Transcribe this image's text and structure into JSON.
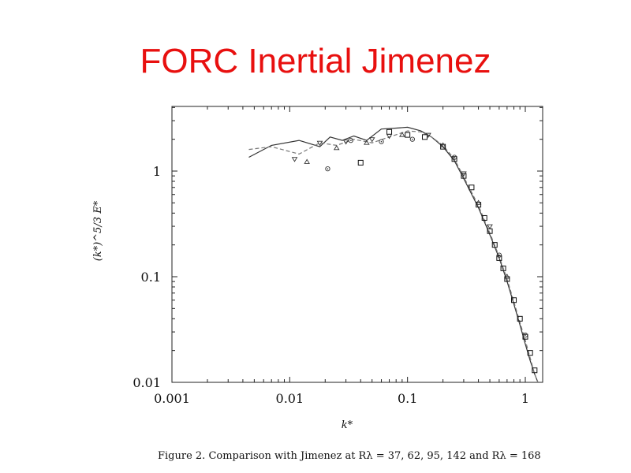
{
  "slide": {
    "title": "FORC Inertial Jimenez"
  },
  "figure": {
    "caption": "Figure 2. Comparison with Jimenez at Rλ = 37, 62, 95, 142 and Rλ = 168"
  },
  "chart_data": {
    "type": "line",
    "xlabel": "k*",
    "ylabel": "(k*)^5/3 E*",
    "xscale": "log",
    "yscale": "log",
    "xlim": [
      0.001,
      1.7
    ],
    "ylim": [
      0.01,
      4
    ],
    "xticks": [
      0.001,
      0.01,
      0.1,
      1
    ],
    "xtick_labels": [
      "0.001",
      "0.01",
      "0.1",
      "1"
    ],
    "yticks": [
      0.01,
      0.1,
      1
    ],
    "ytick_labels": [
      "0.01",
      "0.1",
      "1"
    ],
    "grid": false,
    "series": [
      {
        "style": "solid",
        "color": "#333333",
        "x": [
          0.0045,
          0.007,
          0.012,
          0.018,
          0.022,
          0.028,
          0.035,
          0.045,
          0.06,
          0.08,
          0.1,
          0.13,
          0.16,
          0.2,
          0.25,
          0.3,
          0.4,
          0.5,
          0.6,
          0.7,
          0.8,
          0.9,
          1.0,
          1.1,
          1.2,
          1.28
        ],
        "y": [
          1.35,
          1.75,
          1.95,
          1.7,
          2.1,
          1.95,
          2.15,
          1.95,
          2.5,
          2.55,
          2.6,
          2.4,
          2.1,
          1.7,
          1.25,
          0.85,
          0.45,
          0.25,
          0.15,
          0.09,
          0.055,
          0.035,
          0.023,
          0.016,
          0.012,
          0.01
        ]
      },
      {
        "style": "dashed",
        "color": "#777777",
        "x": [
          0.0045,
          0.007,
          0.012,
          0.018,
          0.025,
          0.035,
          0.05,
          0.07,
          0.1,
          0.13,
          0.16,
          0.2,
          0.25,
          0.3,
          0.4,
          0.5,
          0.6,
          0.7,
          0.8,
          0.9,
          1.0,
          1.1,
          1.2,
          1.28
        ],
        "y": [
          1.6,
          1.7,
          1.45,
          1.85,
          1.75,
          2.0,
          1.85,
          2.1,
          2.4,
          2.35,
          2.1,
          1.75,
          1.3,
          0.88,
          0.47,
          0.26,
          0.155,
          0.095,
          0.058,
          0.037,
          0.025,
          0.017,
          0.012,
          0.01
        ]
      }
    ],
    "markers": [
      {
        "symbol": "square",
        "points": [
          [
            0.04,
            1.2
          ],
          [
            0.07,
            2.35
          ],
          [
            0.1,
            2.2
          ],
          [
            0.14,
            2.1
          ],
          [
            0.2,
            1.7
          ],
          [
            0.25,
            1.3
          ],
          [
            0.3,
            0.9
          ],
          [
            0.35,
            0.7
          ],
          [
            0.4,
            0.48
          ],
          [
            0.45,
            0.36
          ],
          [
            0.5,
            0.27
          ],
          [
            0.55,
            0.2
          ],
          [
            0.6,
            0.15
          ],
          [
            0.65,
            0.12
          ],
          [
            0.7,
            0.095
          ],
          [
            0.8,
            0.06
          ],
          [
            0.9,
            0.04
          ],
          [
            1.0,
            0.027
          ],
          [
            1.1,
            0.019
          ],
          [
            1.2,
            0.013
          ]
        ]
      },
      {
        "symbol": "triangle-down",
        "points": [
          [
            0.011,
            1.3
          ],
          [
            0.018,
            1.85
          ],
          [
            0.03,
            1.9
          ],
          [
            0.05,
            2.0
          ],
          [
            0.07,
            2.15
          ],
          [
            0.15,
            2.2
          ],
          [
            0.3,
            0.95
          ],
          [
            0.5,
            0.3
          ]
        ]
      },
      {
        "symbol": "triangle-up",
        "points": [
          [
            0.014,
            1.22
          ],
          [
            0.025,
            1.65
          ],
          [
            0.045,
            1.85
          ],
          [
            0.09,
            2.2
          ],
          [
            0.2,
            1.75
          ],
          [
            0.4,
            0.5
          ],
          [
            0.7,
            0.1
          ]
        ]
      },
      {
        "symbol": "circle-dot",
        "points": [
          [
            0.021,
            1.05
          ],
          [
            0.033,
            1.95
          ],
          [
            0.06,
            1.9
          ],
          [
            0.11,
            2.0
          ],
          [
            0.25,
            1.35
          ],
          [
            0.6,
            0.16
          ],
          [
            1.0,
            0.028
          ]
        ]
      }
    ]
  }
}
